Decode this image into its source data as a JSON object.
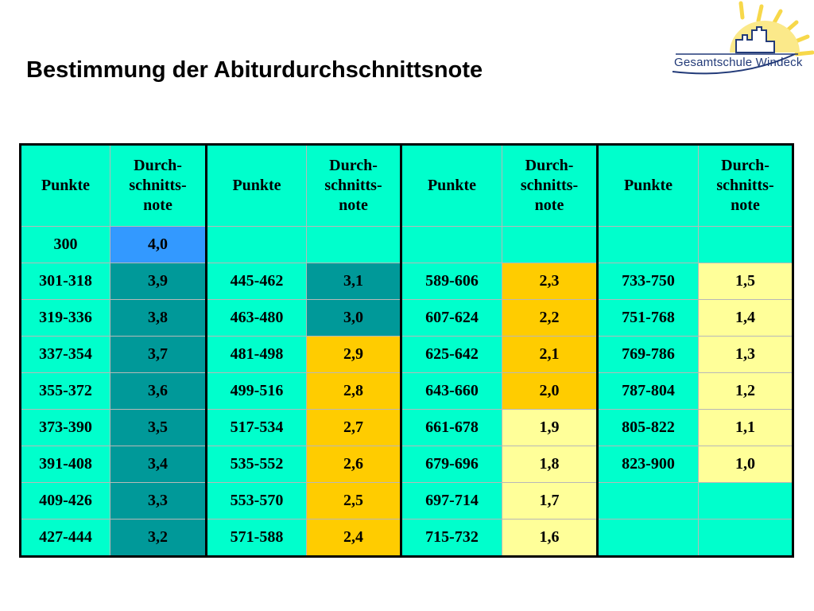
{
  "title": "Bestimmung der Abiturdurchschnittsnote",
  "logo": {
    "text": "Gesamtschule Windeck",
    "colors": {
      "sun": "#f7d84a",
      "building": "#223a78"
    }
  },
  "colors": {
    "header": "#00ffcc",
    "blue": "#3399ff",
    "teal": "#009999",
    "orange": "#ffcc00",
    "yellow": "#ffff99",
    "cyan": "#00ffcc"
  },
  "table": {
    "headers": [
      "Punkte",
      "Durch-\nschnitts-\nnote",
      "Punkte",
      "Durch-\nschnitts-\nnote",
      "Punkte",
      "Durch-\nschnitts-\nnote",
      "Punkte",
      "Durch-\nschnitts-\nnote"
    ],
    "rows": [
      [
        [
          "300",
          "cyan"
        ],
        [
          "4,0",
          "blue"
        ],
        [
          "",
          "cyan"
        ],
        [
          "",
          "cyan"
        ],
        [
          "",
          "cyan"
        ],
        [
          "",
          "cyan"
        ],
        [
          "",
          "cyan"
        ],
        [
          "",
          "cyan"
        ]
      ],
      [
        [
          "301-318",
          "cyan"
        ],
        [
          "3,9",
          "teal"
        ],
        [
          "445-462",
          "cyan"
        ],
        [
          "3,1",
          "teal"
        ],
        [
          "589-606",
          "cyan"
        ],
        [
          "2,3",
          "orange"
        ],
        [
          "733-750",
          "cyan"
        ],
        [
          "1,5",
          "yellow"
        ]
      ],
      [
        [
          "319-336",
          "cyan"
        ],
        [
          "3,8",
          "teal"
        ],
        [
          "463-480",
          "cyan"
        ],
        [
          "3,0",
          "teal"
        ],
        [
          "607-624",
          "cyan"
        ],
        [
          "2,2",
          "orange"
        ],
        [
          "751-768",
          "cyan"
        ],
        [
          "1,4",
          "yellow"
        ]
      ],
      [
        [
          "337-354",
          "cyan"
        ],
        [
          "3,7",
          "teal"
        ],
        [
          "481-498",
          "cyan"
        ],
        [
          "2,9",
          "orange"
        ],
        [
          "625-642",
          "cyan"
        ],
        [
          "2,1",
          "orange"
        ],
        [
          "769-786",
          "cyan"
        ],
        [
          "1,3",
          "yellow"
        ]
      ],
      [
        [
          "355-372",
          "cyan"
        ],
        [
          "3,6",
          "teal"
        ],
        [
          "499-516",
          "cyan"
        ],
        [
          "2,8",
          "orange"
        ],
        [
          "643-660",
          "cyan"
        ],
        [
          "2,0",
          "orange"
        ],
        [
          "787-804",
          "cyan"
        ],
        [
          "1,2",
          "yellow"
        ]
      ],
      [
        [
          "373-390",
          "cyan"
        ],
        [
          "3,5",
          "teal"
        ],
        [
          "517-534",
          "cyan"
        ],
        [
          "2,7",
          "orange"
        ],
        [
          "661-678",
          "cyan"
        ],
        [
          "1,9",
          "yellow"
        ],
        [
          "805-822",
          "cyan"
        ],
        [
          "1,1",
          "yellow"
        ]
      ],
      [
        [
          "391-408",
          "cyan"
        ],
        [
          "3,4",
          "teal"
        ],
        [
          "535-552",
          "cyan"
        ],
        [
          "2,6",
          "orange"
        ],
        [
          "679-696",
          "cyan"
        ],
        [
          "1,8",
          "yellow"
        ],
        [
          "823-900",
          "cyan"
        ],
        [
          "1,0",
          "yellow"
        ]
      ],
      [
        [
          "409-426",
          "cyan"
        ],
        [
          "3,3",
          "teal"
        ],
        [
          "553-570",
          "cyan"
        ],
        [
          "2,5",
          "orange"
        ],
        [
          "697-714",
          "cyan"
        ],
        [
          "1,7",
          "yellow"
        ],
        [
          "",
          "cyan"
        ],
        [
          "",
          "cyan"
        ]
      ],
      [
        [
          "427-444",
          "cyan"
        ],
        [
          "3,2",
          "teal"
        ],
        [
          "571-588",
          "cyan"
        ],
        [
          "2,4",
          "orange"
        ],
        [
          "715-732",
          "cyan"
        ],
        [
          "1,6",
          "yellow"
        ],
        [
          "",
          "cyan"
        ],
        [
          "",
          "cyan"
        ]
      ]
    ]
  }
}
